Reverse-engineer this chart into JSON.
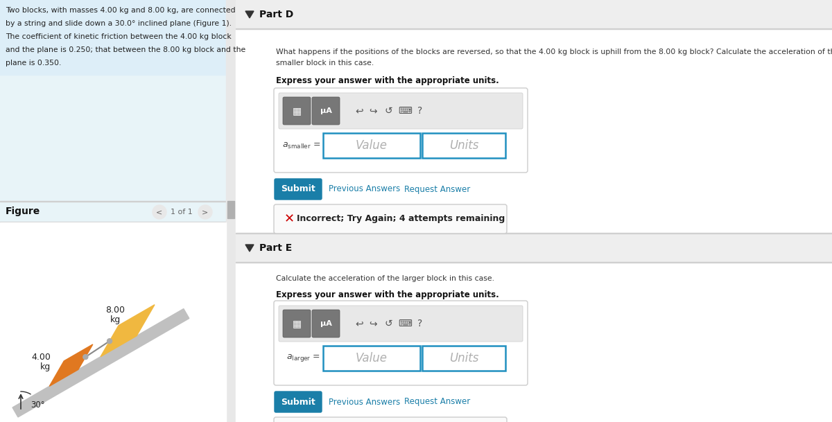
{
  "bg_color": "#ffffff",
  "left_panel_bg": "#e8f4f8",
  "right_panel_bg": "#f5f5f5",
  "part_header_bg": "#efefef",
  "white": "#ffffff",
  "divider_color": "#d0d0d0",
  "input_border_color": "#2090c0",
  "toolbar_bg": "#e0e0e0",
  "submit_color": "#1a7ea8",
  "link_color": "#1a7ea8",
  "error_x_color": "#cc0000",
  "error_border": "#cccccc",
  "error_bg": "#fafafa",
  "block_8_color": "#f0b840",
  "block_4_color": "#e07820",
  "incline_color": "#c0c0c0",
  "text_dark": "#222222",
  "text_mid": "#555555",
  "text_gray": "#aaaaaa",
  "scroll_bg": "#e8e8e8",
  "scroll_thumb": "#b0b0b0",
  "nav_circle": "#e8e8e8",
  "toolbar_btn": "#888888",
  "problem_lines": [
    "Two blocks, with masses 4.00 kg and 8.00 kg, are connected",
    "by a string and slide down a 30.0° inclined plane (Figure 1).",
    "The coefficient of kinetic friction between the 4.00 kg block",
    "and the plane is 0.250; that between the 8.00 kg block and the",
    "plane is 0.350."
  ],
  "part_d_q1": "What happens if the positions of the blocks are reversed, so that the 4.00 kg block is uphill from the 8.00 kg block? Calculate the acceleration of the",
  "part_d_q2": "smaller block in this case.",
  "express": "Express your answer with the appropriate units.",
  "submit_text": "Submit",
  "prev_answers": "Previous Answers",
  "req_answer": "Request Answer",
  "incorrect": "Incorrect; Try Again; 4 attempts remaining",
  "part_e_q": "Calculate the acceleration of the larger block in this case.",
  "value_text": "Value",
  "units_text": "Units",
  "figure_text": "Figure",
  "nav_text": "1 of 1"
}
